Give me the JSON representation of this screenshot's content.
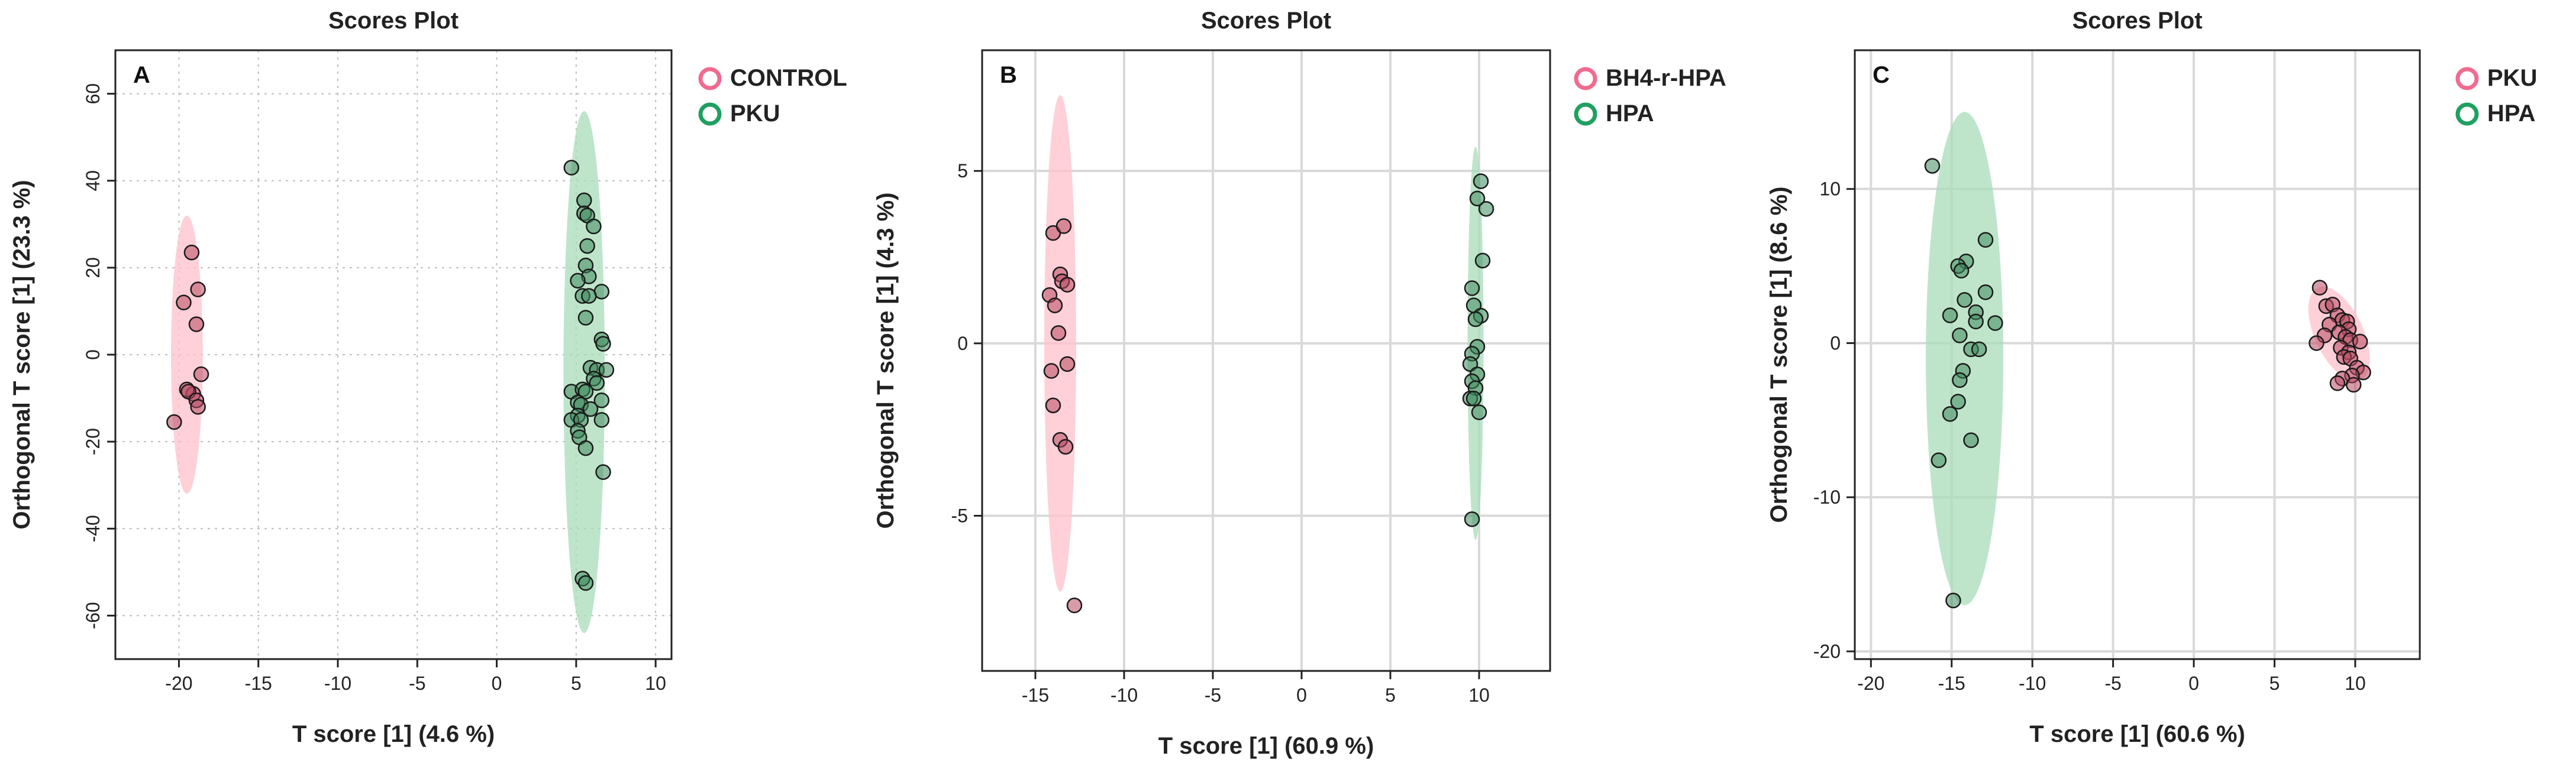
{
  "chart_data": [
    {
      "type": "scatter",
      "title": "Scores Plot",
      "panel_label": "A",
      "xlabel": "T score [1] (4.6 %)",
      "ylabel": "Orthogonal T score [1] (23.3 %)",
      "xlim": [
        -24,
        11
      ],
      "ylim": [
        -70,
        70
      ],
      "xticks": [
        -20,
        -15,
        -10,
        -5,
        0,
        5,
        10
      ],
      "yticks": [
        -60,
        -40,
        -20,
        0,
        20,
        40,
        60
      ],
      "ytick_rotated": true,
      "grid": "dotted",
      "series": [
        {
          "name": "CONTROL",
          "color": "#f06b8f",
          "fill": "#ffc0cb",
          "ellipse": {
            "cx": -19.5,
            "cy": 0,
            "rx": 1.0,
            "ry": 32
          },
          "points": [
            [
              -20.3,
              -15.5
            ],
            [
              -19.7,
              12
            ],
            [
              -19.2,
              23.5
            ],
            [
              -18.8,
              15
            ],
            [
              -18.9,
              7
            ],
            [
              -18.6,
              -4.5
            ],
            [
              -19.1,
              -9
            ],
            [
              -19.5,
              -8
            ],
            [
              -19.4,
              -8.5
            ],
            [
              -18.9,
              -10.5
            ],
            [
              -18.8,
              -12
            ]
          ]
        },
        {
          "name": "PKU",
          "color": "#1fa060",
          "fill": "#a8dcb8",
          "ellipse": {
            "cx": 5.5,
            "cy": -4,
            "rx": 1.3,
            "ry": 60
          },
          "points": [
            [
              4.7,
              43
            ],
            [
              5.5,
              35.5
            ],
            [
              5.5,
              32.5
            ],
            [
              5.7,
              32
            ],
            [
              6.1,
              29.5
            ],
            [
              5.7,
              25
            ],
            [
              5.6,
              20.5
            ],
            [
              5.8,
              18
            ],
            [
              5.1,
              17
            ],
            [
              6.6,
              14.5
            ],
            [
              5.4,
              13.5
            ],
            [
              5.8,
              13.5
            ],
            [
              5.6,
              8.5
            ],
            [
              6.6,
              3.5
            ],
            [
              6.7,
              2.5
            ],
            [
              5.9,
              -3
            ],
            [
              6.3,
              -3.5
            ],
            [
              6.9,
              -3.5
            ],
            [
              6.1,
              -5.5
            ],
            [
              6.3,
              -6.5
            ],
            [
              4.7,
              -8.5
            ],
            [
              5.4,
              -8
            ],
            [
              5.6,
              -8.5
            ],
            [
              6.6,
              -10.5
            ],
            [
              5.1,
              -11
            ],
            [
              5.3,
              -11.5
            ],
            [
              5.9,
              -12.5
            ],
            [
              5.1,
              -14
            ],
            [
              4.7,
              -15
            ],
            [
              5.3,
              -15
            ],
            [
              6.6,
              -15
            ],
            [
              5.1,
              -17.5
            ],
            [
              5.2,
              -19
            ],
            [
              5.6,
              -21.5
            ],
            [
              6.7,
              -27
            ],
            [
              5.4,
              -51.5
            ],
            [
              5.6,
              -52.5
            ]
          ]
        }
      ]
    },
    {
      "type": "scatter",
      "title": "Scores Plot",
      "panel_label": "B",
      "xlabel": "T score [1] (60.9 %)",
      "ylabel": "Orthogonal T score [1] (4.3 %)",
      "xlim": [
        -18,
        14
      ],
      "ylim": [
        -9.5,
        8.5
      ],
      "xticks": [
        -15,
        -10,
        -5,
        0,
        5,
        10
      ],
      "yticks": [
        -5,
        0,
        5
      ],
      "ytick_rotated": false,
      "grid": "solid",
      "series": [
        {
          "name": "BH4-r-HPA",
          "color": "#f06b8f",
          "fill": "#ffc0cb",
          "ellipse": {
            "cx": -13.6,
            "cy": 0,
            "rx": 0.9,
            "ry": 7.2
          },
          "points": [
            [
              -14.0,
              3.2
            ],
            [
              -13.4,
              3.4
            ],
            [
              -13.6,
              2.0
            ],
            [
              -13.5,
              1.8
            ],
            [
              -13.2,
              1.7
            ],
            [
              -14.2,
              1.4
            ],
            [
              -13.9,
              1.1
            ],
            [
              -13.7,
              0.3
            ],
            [
              -13.2,
              -0.6
            ],
            [
              -14.1,
              -0.8
            ],
            [
              -14.0,
              -1.8
            ],
            [
              -13.6,
              -2.8
            ],
            [
              -13.3,
              -3.0
            ],
            [
              -12.8,
              -7.6
            ]
          ]
        },
        {
          "name": "HPA",
          "color": "#1fa060",
          "fill": "#a8dcb8",
          "ellipse": {
            "cx": 9.8,
            "cy": 0,
            "rx": 0.45,
            "ry": 5.7
          },
          "points": [
            [
              10.1,
              4.7
            ],
            [
              9.9,
              4.2
            ],
            [
              10.4,
              3.9
            ],
            [
              10.2,
              2.4
            ],
            [
              9.6,
              1.6
            ],
            [
              9.7,
              1.1
            ],
            [
              10.1,
              0.8
            ],
            [
              9.8,
              0.7
            ],
            [
              9.9,
              -0.1
            ],
            [
              9.6,
              -0.3
            ],
            [
              9.5,
              -0.6
            ],
            [
              9.9,
              -0.9
            ],
            [
              9.6,
              -1.1
            ],
            [
              9.8,
              -1.3
            ],
            [
              9.5,
              -1.6
            ],
            [
              9.7,
              -1.6
            ],
            [
              10.0,
              -2.0
            ],
            [
              9.6,
              -5.1
            ]
          ]
        }
      ]
    },
    {
      "type": "scatter",
      "title": "Scores Plot",
      "panel_label": "C",
      "xlabel": "T score [1] (60.6 %)",
      "ylabel": "Orthogonal T score [1] (8.6 %)",
      "xlim": [
        -21,
        14
      ],
      "ylim": [
        -20.5,
        19
      ],
      "xticks": [
        -20,
        -15,
        -10,
        -5,
        0,
        5,
        10
      ],
      "yticks": [
        -20,
        -10,
        0,
        10
      ],
      "ytick_rotated": false,
      "grid": "solid",
      "series": [
        {
          "name": "PKU",
          "color": "#f06b8f",
          "fill": "#ffc0cb",
          "ellipse": {
            "cx": 9.0,
            "cy": 0.6,
            "rx": 1.5,
            "ry": 3.3,
            "rotate": -25
          },
          "points": [
            [
              7.8,
              3.6
            ],
            [
              8.2,
              2.4
            ],
            [
              8.6,
              2.5
            ],
            [
              8.9,
              1.8
            ],
            [
              9.2,
              1.5
            ],
            [
              9.5,
              1.4
            ],
            [
              8.4,
              1.2
            ],
            [
              9.6,
              0.9
            ],
            [
              9.0,
              0.7
            ],
            [
              9.4,
              0.4
            ],
            [
              8.1,
              0.5
            ],
            [
              9.7,
              0.2
            ],
            [
              10.3,
              0.1
            ],
            [
              7.6,
              0.0
            ],
            [
              9.1,
              -0.3
            ],
            [
              9.6,
              -0.6
            ],
            [
              9.3,
              -0.9
            ],
            [
              9.7,
              -1.0
            ],
            [
              10.1,
              -1.6
            ],
            [
              10.5,
              -1.9
            ],
            [
              9.8,
              -2.1
            ],
            [
              9.2,
              -2.3
            ],
            [
              8.9,
              -2.6
            ],
            [
              9.9,
              -2.7
            ]
          ]
        },
        {
          "name": "HPA",
          "color": "#1fa060",
          "fill": "#a8dcb8",
          "ellipse": {
            "cx": -14.2,
            "cy": -1.0,
            "rx": 2.4,
            "ry": 16
          },
          "points": [
            [
              -16.2,
              11.5
            ],
            [
              -12.9,
              6.7
            ],
            [
              -14.1,
              5.3
            ],
            [
              -14.6,
              5.0
            ],
            [
              -14.4,
              4.7
            ],
            [
              -12.9,
              3.3
            ],
            [
              -14.2,
              2.8
            ],
            [
              -13.5,
              2.0
            ],
            [
              -15.1,
              1.8
            ],
            [
              -13.5,
              1.4
            ],
            [
              -12.3,
              1.3
            ],
            [
              -14.5,
              0.5
            ],
            [
              -13.8,
              -0.4
            ],
            [
              -13.3,
              -0.4
            ],
            [
              -14.3,
              -1.8
            ],
            [
              -14.5,
              -2.4
            ],
            [
              -14.6,
              -3.8
            ],
            [
              -15.1,
              -4.6
            ],
            [
              -13.8,
              -6.3
            ],
            [
              -15.8,
              -7.6
            ],
            [
              -14.9,
              -16.7
            ]
          ]
        }
      ]
    }
  ]
}
